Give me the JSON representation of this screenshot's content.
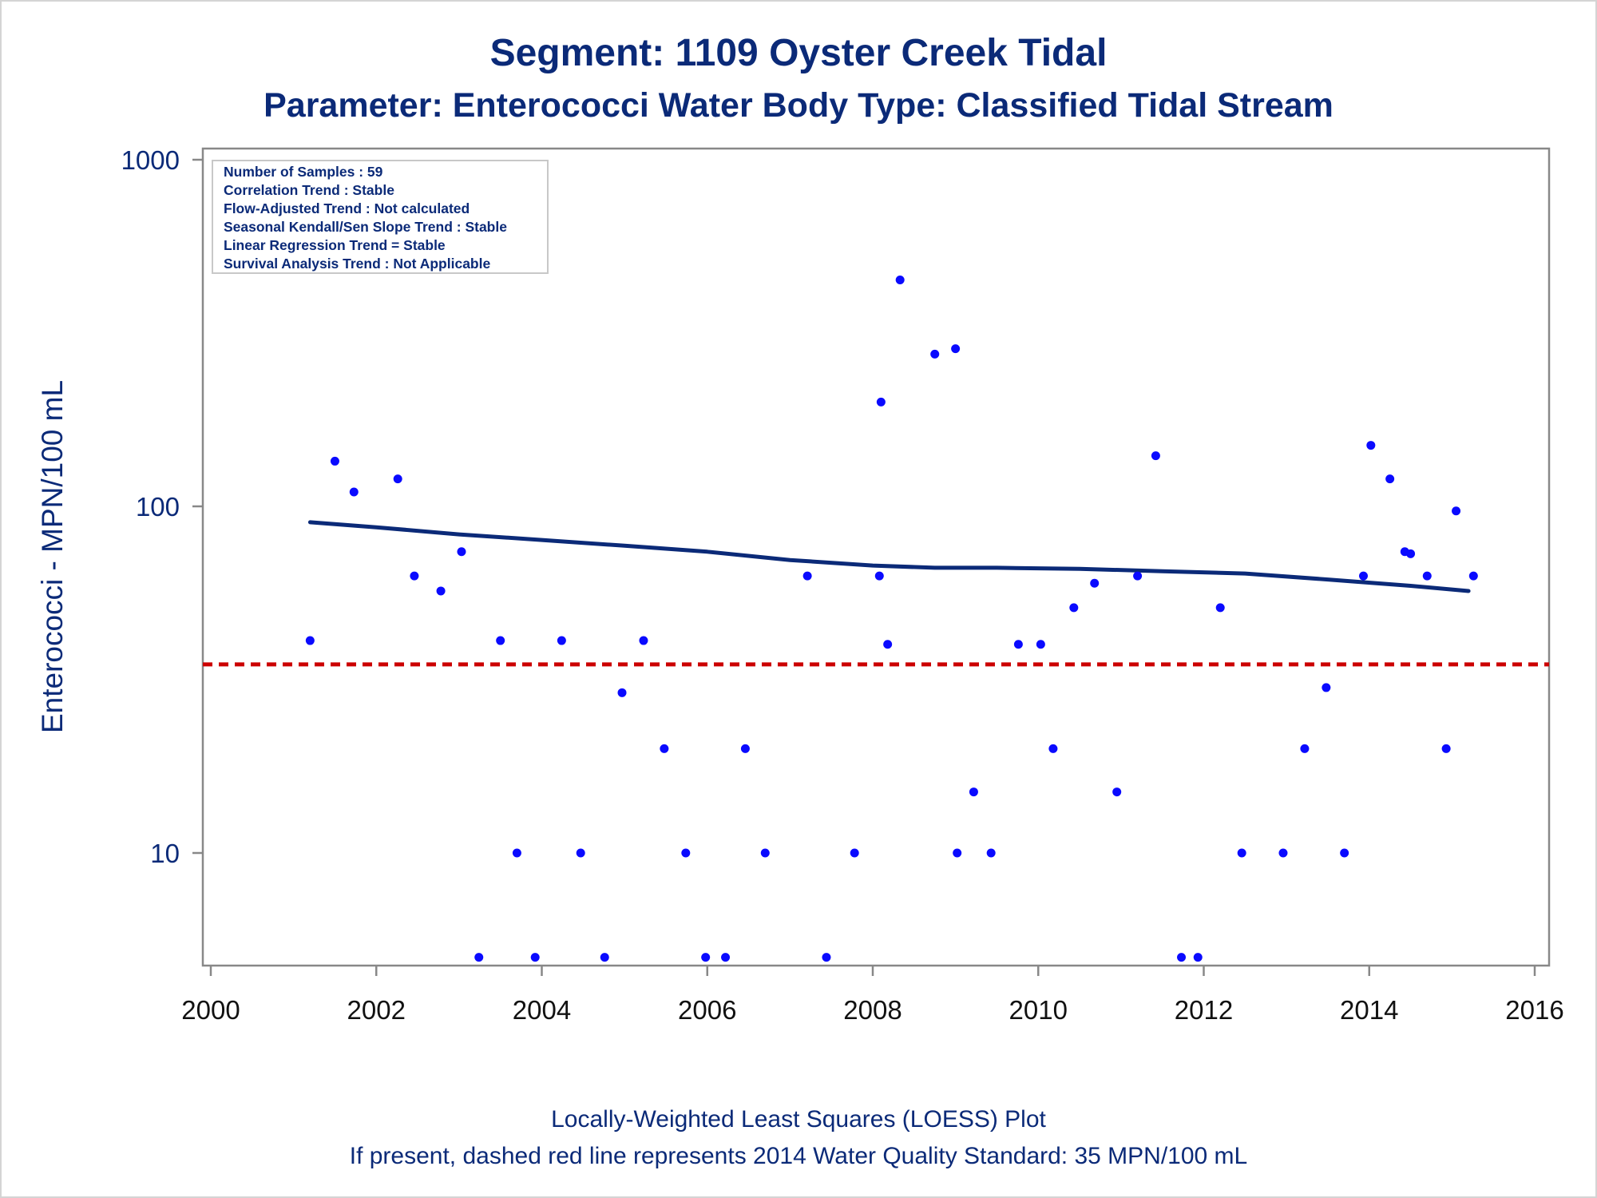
{
  "chart_data": {
    "type": "scatter",
    "title": "Segment: 1109  Oyster Creek Tidal",
    "subtitle": "Parameter: Enterococci   Water Body Type: Classified Tidal Stream",
    "ylabel": "Enterococci - MPN/100 mL",
    "xlabel": "",
    "footnotes": [
      "Locally-Weighted Least Squares (LOESS) Plot",
      "If present, dashed red line represents 2014 Water Quality Standard: 35 MPN/100 mL"
    ],
    "stats_box": [
      "Number of Samples : 59",
      "Correlation Trend : Stable",
      "Flow-Adjusted Trend : Not calculated",
      "Seasonal Kendall/Sen Slope Trend : Stable",
      "Linear Regression Trend = Stable",
      "Survival Analysis Trend : Not Applicable"
    ],
    "x_ticks": [
      "2000",
      "2002",
      "2004",
      "2006",
      "2008",
      "2010",
      "2012",
      "2014",
      "2016"
    ],
    "y_ticks": [
      "10",
      "100",
      "1000"
    ],
    "xlim": [
      2000,
      2016
    ],
    "ylim": [
      4.7,
      1000
    ],
    "y_scale": "log",
    "grid": false,
    "standard_line": {
      "value": 35,
      "style": "dashed",
      "color": "#cc0000"
    },
    "points": [
      [
        2001.2,
        41
      ],
      [
        2001.5,
        135
      ],
      [
        2001.73,
        110
      ],
      [
        2002.26,
        120
      ],
      [
        2002.46,
        63
      ],
      [
        2002.78,
        57
      ],
      [
        2003.03,
        74
      ],
      [
        2003.24,
        5
      ],
      [
        2003.5,
        41
      ],
      [
        2003.7,
        10
      ],
      [
        2003.92,
        5
      ],
      [
        2004.24,
        41
      ],
      [
        2004.47,
        10
      ],
      [
        2004.76,
        5
      ],
      [
        2004.97,
        29
      ],
      [
        2005.23,
        41
      ],
      [
        2005.48,
        20
      ],
      [
        2005.98,
        5
      ],
      [
        2005.74,
        10
      ],
      [
        2006.22,
        5
      ],
      [
        2006.46,
        20
      ],
      [
        2006.7,
        10
      ],
      [
        2007.21,
        63
      ],
      [
        2007.44,
        5
      ],
      [
        2007.78,
        10
      ],
      [
        2008.08,
        63
      ],
      [
        2008.1,
        200
      ],
      [
        2008.18,
        40
      ],
      [
        2008.33,
        450
      ],
      [
        2008.75,
        275
      ],
      [
        2009.0,
        285
      ],
      [
        2009.02,
        10
      ],
      [
        2009.22,
        15
      ],
      [
        2009.43,
        10
      ],
      [
        2009.76,
        40
      ],
      [
        2010.03,
        40
      ],
      [
        2010.18,
        20
      ],
      [
        2010.43,
        51
      ],
      [
        2010.68,
        60
      ],
      [
        2010.95,
        15
      ],
      [
        2011.2,
        63
      ],
      [
        2011.42,
        140
      ],
      [
        2011.73,
        5
      ],
      [
        2011.93,
        5
      ],
      [
        2012.2,
        51
      ],
      [
        2012.46,
        10
      ],
      [
        2012.96,
        10
      ],
      [
        2013.22,
        20
      ],
      [
        2013.48,
        30
      ],
      [
        2013.7,
        10
      ],
      [
        2013.93,
        63
      ],
      [
        2014.02,
        150
      ],
      [
        2014.25,
        120
      ],
      [
        2014.43,
        74
      ],
      [
        2014.5,
        73
      ],
      [
        2014.7,
        63
      ],
      [
        2014.93,
        20
      ],
      [
        2015.05,
        97
      ],
      [
        2015.26,
        63
      ]
    ],
    "loess": [
      [
        2001.2,
        90
      ],
      [
        2002,
        87
      ],
      [
        2003,
        83
      ],
      [
        2004,
        80
      ],
      [
        2005,
        77
      ],
      [
        2006,
        74
      ],
      [
        2007,
        70
      ],
      [
        2008,
        67.5
      ],
      [
        2008.75,
        66.5
      ],
      [
        2009.5,
        66.5
      ],
      [
        2010.5,
        66
      ],
      [
        2011.5,
        65
      ],
      [
        2012.5,
        64
      ],
      [
        2013.5,
        61.5
      ],
      [
        2014.5,
        59
      ],
      [
        2015.2,
        57
      ]
    ],
    "colors": {
      "points": "#0a0aff",
      "loess": "#0b2a78",
      "standard": "#cc0000",
      "text": "#0b2a78",
      "axis": "#888888"
    }
  }
}
